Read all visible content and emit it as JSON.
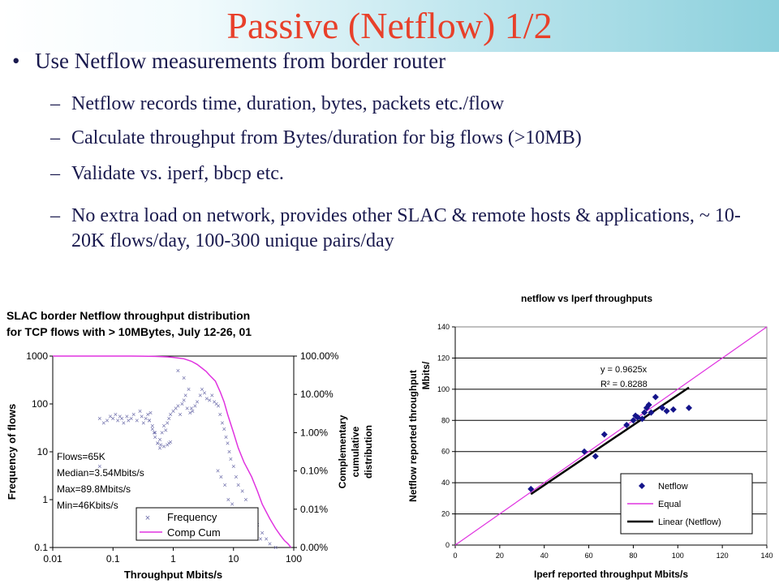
{
  "slide": {
    "title": "Passive (Netflow) 1/2",
    "bullet": "Use Netflow measurements from border router",
    "subbullets": [
      "Netflow records time, duration, bytes, packets etc./flow",
      "Calculate throughput from Bytes/duration for big flows (>10MB)",
      "Validate vs. iperf, bbcp etc.",
      "No extra load on network, provides other SLAC & remote hosts & applications, ~ 10-20K flows/day, 100-300 unique pairs/day"
    ],
    "colors": {
      "title": "#e8402a",
      "text": "#1a1a4e",
      "band": "#8cd0dc"
    }
  },
  "chart_data": [
    {
      "type": "scatter",
      "title": "SLAC border Netflow throughput distribution for TCP flows with > 10MBytes, July 12-26, 01",
      "title_lines": [
        "SLAC border Netflow throughput distribution",
        "for TCP flows with > 10MBytes, July 12-26, 01"
      ],
      "xlabel": "Throughput Mbits/s",
      "ylabel": "Frequency of flows",
      "y2label": [
        "Complementary",
        "cumulative",
        "distribution"
      ],
      "xscale": "log",
      "yscale": "log",
      "xlim": [
        0.01,
        100
      ],
      "ylim": [
        0.1,
        1000
      ],
      "xticks": [
        "0.01",
        "0.1",
        "1",
        "10",
        "100"
      ],
      "yticks": [
        "0.1",
        "1",
        "10",
        "100",
        "1000"
      ],
      "y2ticks": [
        "0.00%",
        "0.01%",
        "0.10%",
        "1.00%",
        "10.00%",
        "100.00%"
      ],
      "annotations": [
        "Flows=65K",
        "Median=3.54Mbits/s",
        "Max=89.8Mbits/s",
        "Min=46Kbits/s"
      ],
      "legend": [
        "Frequency",
        "Comp Cum"
      ],
      "legend_position": "bottom-right",
      "series": [
        {
          "name": "Frequency",
          "color": "#6a6aa8",
          "marker": "x",
          "x": [
            0.06,
            0.07,
            0.08,
            0.09,
            0.1,
            0.11,
            0.12,
            0.13,
            0.14,
            0.15,
            0.17,
            0.18,
            0.2,
            0.22,
            0.25,
            0.28,
            0.3,
            0.32,
            0.35,
            0.38,
            0.4,
            0.42,
            0.45,
            0.48,
            0.5,
            0.55,
            0.6,
            0.65,
            0.7,
            0.75,
            0.8,
            0.85,
            0.9,
            1.0,
            1.1,
            1.2,
            1.3,
            1.4,
            1.5,
            1.7,
            1.9,
            2.1,
            2.3,
            2.5,
            2.8,
            3.0,
            3.3,
            3.6,
            4.0,
            4.4,
            4.8,
            5.2,
            5.6,
            6.0,
            6.5,
            7.0,
            7.5,
            8.0,
            8.5,
            9.0,
            10,
            11,
            12,
            14,
            16,
            18,
            20,
            25,
            30,
            35,
            0.4,
            0.45,
            0.5,
            0.55,
            1.2,
            1.5,
            1.6,
            1.8,
            2.0,
            0.6,
            0.62,
            0.7,
            0.8,
            0.85,
            0.9,
            5.5,
            6.2,
            7.2,
            8.2,
            9.5,
            12,
            15,
            22,
            28,
            40,
            50,
            0.06
          ],
          "y": [
            50,
            40,
            45,
            55,
            50,
            60,
            45,
            55,
            50,
            40,
            55,
            45,
            50,
            60,
            45,
            70,
            55,
            40,
            50,
            60,
            45,
            65,
            30,
            25,
            20,
            15,
            18,
            25,
            35,
            28,
            40,
            50,
            60,
            70,
            80,
            90,
            60,
            100,
            120,
            80,
            65,
            70,
            90,
            110,
            150,
            200,
            170,
            130,
            120,
            150,
            110,
            100,
            90,
            60,
            40,
            30,
            20,
            15,
            10,
            7,
            5,
            3,
            2,
            1.5,
            1,
            0.6,
            0.4,
            0.3,
            0.2,
            0.15,
            45,
            35,
            25,
            15,
            500,
            350,
            150,
            200,
            80,
            12,
            14,
            13,
            14,
            15,
            16,
            4,
            3,
            2,
            1,
            0.8,
            0.5,
            0.3,
            0.2,
            0.15,
            0.12,
            0.1,
            5
          ]
        },
        {
          "name": "Comp Cum",
          "color": "#e033e0",
          "line": "solid",
          "x": [
            0.01,
            0.03,
            0.05,
            0.1,
            0.2,
            0.3,
            0.5,
            0.8,
            1.0,
            1.5,
            2.0,
            2.5,
            3.0,
            3.5,
            4.0,
            5.0,
            6.0,
            7.0,
            8.0,
            10,
            12,
            15,
            20,
            25,
            30,
            40,
            50,
            60,
            70,
            80,
            90
          ],
          "y": [
            1000,
            1000,
            1000,
            1000,
            1000,
            995,
            985,
            960,
            940,
            880,
            780,
            670,
            560,
            480,
            400,
            300,
            180,
            110,
            60,
            25,
            12,
            6,
            3,
            1.5,
            0.8,
            0.4,
            0.25,
            0.18,
            0.14,
            0.12,
            0.1
          ]
        }
      ]
    },
    {
      "type": "scatter",
      "title": "netflow vs Iperf throughputs",
      "xlabel": "Iperf reported throughput Mbits/s",
      "ylabel": [
        "Netflow reported throughput",
        "Mbits/"
      ],
      "xlim": [
        0,
        140
      ],
      "ylim": [
        0,
        140
      ],
      "xticks": [
        "0",
        "20",
        "40",
        "60",
        "80",
        "100",
        "120",
        "140"
      ],
      "yticks": [
        "0",
        "20",
        "40",
        "60",
        "80",
        "100",
        "120",
        "140"
      ],
      "grid": "horizontal",
      "annotations": [
        "y = 0.9625x",
        "R² = 0.8288"
      ],
      "legend": [
        "Netflow",
        "Equal",
        "Linear (Netflow)"
      ],
      "legend_position": "bottom-right",
      "series": [
        {
          "name": "Netflow",
          "color": "#14148a",
          "marker": "diamond",
          "x": [
            34,
            58,
            63,
            67,
            77,
            80,
            81,
            82,
            84,
            85,
            86,
            87,
            88,
            90,
            93,
            95,
            98,
            105
          ],
          "y": [
            36,
            60,
            57,
            71,
            77,
            80,
            83,
            82,
            81,
            85,
            88,
            90,
            85,
            95,
            88,
            86,
            87,
            88
          ]
        },
        {
          "name": "Equal",
          "color": "#e033e0",
          "line": "solid",
          "x": [
            0,
            140
          ],
          "y": [
            0,
            140
          ]
        },
        {
          "name": "Linear (Netflow)",
          "color": "#000000",
          "line": "solid",
          "x": [
            34,
            105
          ],
          "y": [
            32.7,
            101.1
          ]
        }
      ]
    }
  ]
}
